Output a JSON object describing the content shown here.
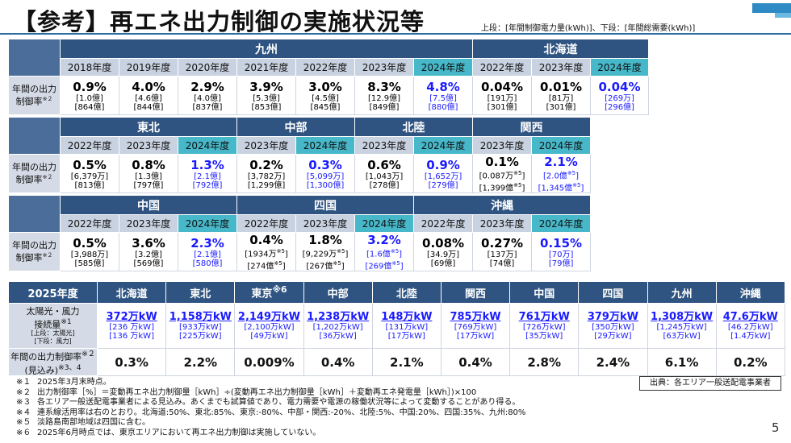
{
  "header": {
    "title": "【参考】再エネ出力制御の実施状況等",
    "legend": "上段：[年間制御電力量(kWh)]、下段：[年間総需要(kWh)]"
  },
  "row_label_lines": [
    "年間の出力",
    "制御率"
  ],
  "row_label_note": "※２",
  "table1": {
    "regions": [
      {
        "name": "九州",
        "years": [
          {
            "year": "2018年度",
            "rate": "0.9%",
            "upper": "[1.0億]",
            "lower": "[864億]",
            "hl": false
          },
          {
            "year": "2019年度",
            "rate": "4.0%",
            "upper": "[4.6億]",
            "lower": "[844億]",
            "hl": false
          },
          {
            "year": "2020年度",
            "rate": "2.9%",
            "upper": "[4.0億]",
            "lower": "[837億]",
            "hl": false
          },
          {
            "year": "2021年度",
            "rate": "3.9%",
            "upper": "[5.3億]",
            "lower": "[853億]",
            "hl": false
          },
          {
            "year": "2022年度",
            "rate": "3.0%",
            "upper": "[4.5億]",
            "lower": "[845億]",
            "hl": false
          },
          {
            "year": "2023年度",
            "rate": "8.3%",
            "upper": "[12.9億]",
            "lower": "[849億]",
            "hl": false
          },
          {
            "year": "2024年度",
            "rate": "4.8%",
            "upper": "[7.5億]",
            "lower": "[880億]",
            "hl": true
          }
        ]
      },
      {
        "name": "北海道",
        "years": [
          {
            "year": "2022年度",
            "rate": "0.04%",
            "upper": "[191万]",
            "lower": "[301億]",
            "hl": false
          },
          {
            "year": "2023年度",
            "rate": "0.01%",
            "upper": "[81万]",
            "lower": "[301億]",
            "hl": false
          },
          {
            "year": "2024年度",
            "rate": "0.04%",
            "upper": "[269万]",
            "lower": "[296億]",
            "hl": true
          }
        ]
      }
    ]
  },
  "table2": {
    "regions": [
      {
        "name": "東北",
        "years": [
          {
            "year": "2022年度",
            "rate": "0.5%",
            "upper": "[6,379万]",
            "lower": "[813億]",
            "hl": false
          },
          {
            "year": "2023年度",
            "rate": "0.8%",
            "upper": "[1.3億]",
            "lower": "[797億]",
            "hl": false
          },
          {
            "year": "2024年度",
            "rate": "1.3%",
            "upper": "[2.1億]",
            "lower": "[792億]",
            "hl": true
          }
        ]
      },
      {
        "name": "中部",
        "years": [
          {
            "year": "2023年度",
            "rate": "0.2%",
            "upper": "[3,782万]",
            "lower": "[1,299億]",
            "hl": false
          },
          {
            "year": "2024年度",
            "rate": "0.3%",
            "upper": "[5,099万]",
            "lower": "[1,300億]",
            "hl": true
          }
        ]
      },
      {
        "name": "北陸",
        "years": [
          {
            "year": "2023年度",
            "rate": "0.6%",
            "upper": "[1,043万]",
            "lower": "[278億]",
            "hl": false
          },
          {
            "year": "2024年度",
            "rate": "0.9%",
            "upper": "[1,652万]",
            "lower": "[279億]",
            "hl": true
          }
        ]
      },
      {
        "name": "関西",
        "years": [
          {
            "year": "2023年度",
            "rate": "0.1%",
            "upper": "[0.087万",
            "upper_sup": "※5",
            "upper_end": "]",
            "lower": "[1,399億",
            "lower_sup": "※5",
            "lower_end": "]",
            "hl": false
          },
          {
            "year": "2024年度",
            "rate": "2.1%",
            "upper": "[2.0億",
            "upper_sup": "※5",
            "upper_end": "]",
            "lower": "[1,345億",
            "lower_sup": "※5",
            "lower_end": "]",
            "hl": true
          }
        ]
      }
    ]
  },
  "table3": {
    "regions": [
      {
        "name": "中国",
        "years": [
          {
            "year": "2022年度",
            "rate": "0.5%",
            "upper": "[3,988万]",
            "lower": "[585億]",
            "hl": false
          },
          {
            "year": "2023年度",
            "rate": "3.6%",
            "upper": "[3.2億]",
            "lower": "[569億]",
            "hl": false
          },
          {
            "year": "2024年度",
            "rate": "2.3%",
            "upper": "[2.1億]",
            "lower": "[580億]",
            "hl": true
          }
        ]
      },
      {
        "name": "四国",
        "years": [
          {
            "year": "2022年度",
            "rate": "0.4%",
            "upper": "[1934万",
            "upper_sup": "※5",
            "upper_end": "]",
            "lower": "[274億",
            "lower_sup": "※5",
            "lower_end": "]",
            "hl": false
          },
          {
            "year": "2023年度",
            "rate": "1.8%",
            "upper": "[9,229万",
            "upper_sup": "※5",
            "upper_end": "]",
            "lower": "[267億",
            "lower_sup": "※5",
            "lower_end": "]",
            "hl": false
          },
          {
            "year": "2024年度",
            "rate": "3.2%",
            "upper": "[1.6億",
            "upper_sup": "※5",
            "upper_end": "]",
            "lower": "[269億",
            "lower_sup": "※5",
            "lower_end": "]",
            "hl": true
          }
        ]
      },
      {
        "name": "沖縄",
        "years": [
          {
            "year": "2022年度",
            "rate": "0.08%",
            "upper": "[34.9万]",
            "lower": "[69億]",
            "hl": false
          },
          {
            "year": "2023年度",
            "rate": "0.27%",
            "upper": "[137万]",
            "lower": "[74億]",
            "hl": false
          },
          {
            "year": "2024年度",
            "rate": "0.15%",
            "upper": "[70万]",
            "lower": "[79億]",
            "hl": true
          }
        ]
      }
    ]
  },
  "table4": {
    "year_label": "2025年度",
    "row1_label": [
      "太陽光・風力",
      "接続量"
    ],
    "row1_note": "※1",
    "row1_sub": [
      "[上段：太陽光]",
      "[下段：風力]"
    ],
    "row2_label": [
      "年間の出力制御率",
      "(見込み)"
    ],
    "row2_note1": "※２",
    "row2_note2": "※3、4",
    "columns": [
      {
        "name": "北海道",
        "note": "",
        "total": "372万kW",
        "solar": "[236 万kW]",
        "wind": "[136 万kW]",
        "rate": "0.3%"
      },
      {
        "name": "東北",
        "note": "",
        "total": "1,158万kW",
        "solar": "[933万kW]",
        "wind": "[225万kW]",
        "rate": "2.2%"
      },
      {
        "name": "東京",
        "note": "※6",
        "total": "2,149万kW",
        "solar": "[2,100万kW]",
        "wind": "[49万kW]",
        "rate": "0.009%"
      },
      {
        "name": "中部",
        "note": "",
        "total": "1,238万kW",
        "solar": "[1,202万kW]",
        "wind": "[36万kW]",
        "rate": "0.4%"
      },
      {
        "name": "北陸",
        "note": "",
        "total": "148万kW",
        "solar": "[131万kW]",
        "wind": "[17万kW]",
        "rate": "2.1%"
      },
      {
        "name": "関西",
        "note": "",
        "total": "785万kW",
        "solar": "[769万kW]",
        "wind": "[17万kW]",
        "rate": "0.4%"
      },
      {
        "name": "中国",
        "note": "",
        "total": "761万kW",
        "solar": "[726万kW]",
        "wind": "[35万kW]",
        "rate": "2.8%"
      },
      {
        "name": "四国",
        "note": "",
        "total": "379万kW",
        "solar": "[350万kW]",
        "wind": "[29万kW]",
        "rate": "2.4%"
      },
      {
        "name": "九州",
        "note": "",
        "total": "1,308万kW",
        "solar": "[1,245万kW]",
        "wind": "[63万kW]",
        "rate": "6.1%"
      },
      {
        "name": "沖縄",
        "note": "",
        "total": "47.6万kW",
        "solar": "[46.2万kW]",
        "wind": "[1.4万kW]",
        "rate": "0.2%"
      }
    ]
  },
  "notes": [
    {
      "num": "※１",
      "text": "2025年3月末時点。"
    },
    {
      "num": "※２",
      "text": "出力制御率［%］＝変動再エネ出力制御量［kWh］÷(変動再エネ出力制御量［kWh］＋変動再エネ発電量［kWh］)×100"
    },
    {
      "num": "※３",
      "text": "各エリア一般送配電事業者による見込み。あくまでも試算値であり、電力需要や電源の稼働状況等によって変動することがあり得る。"
    },
    {
      "num": "※４",
      "text": "連系線活用率は右のとおり。北海道:50%、東北:85%、東京:-80%、中部・関西:-20%、北陸:5%、中国:20%、四国:35%、九州:80%"
    },
    {
      "num": "※５",
      "text": "淡路島南部地域は四国に含む。"
    },
    {
      "num": "※６",
      "text": "2025年6月時点では、東京エリアにおいて再エネ出力制御は実施していない。"
    }
  ],
  "source": "出典：各エリア一般送配電事業者",
  "page_number": "5",
  "colors": {
    "header_region": "#2f5481",
    "header_year": "#c9d2e0",
    "header_year_highlight": "#47b8c9",
    "highlight_text": "#1a1aff"
  }
}
